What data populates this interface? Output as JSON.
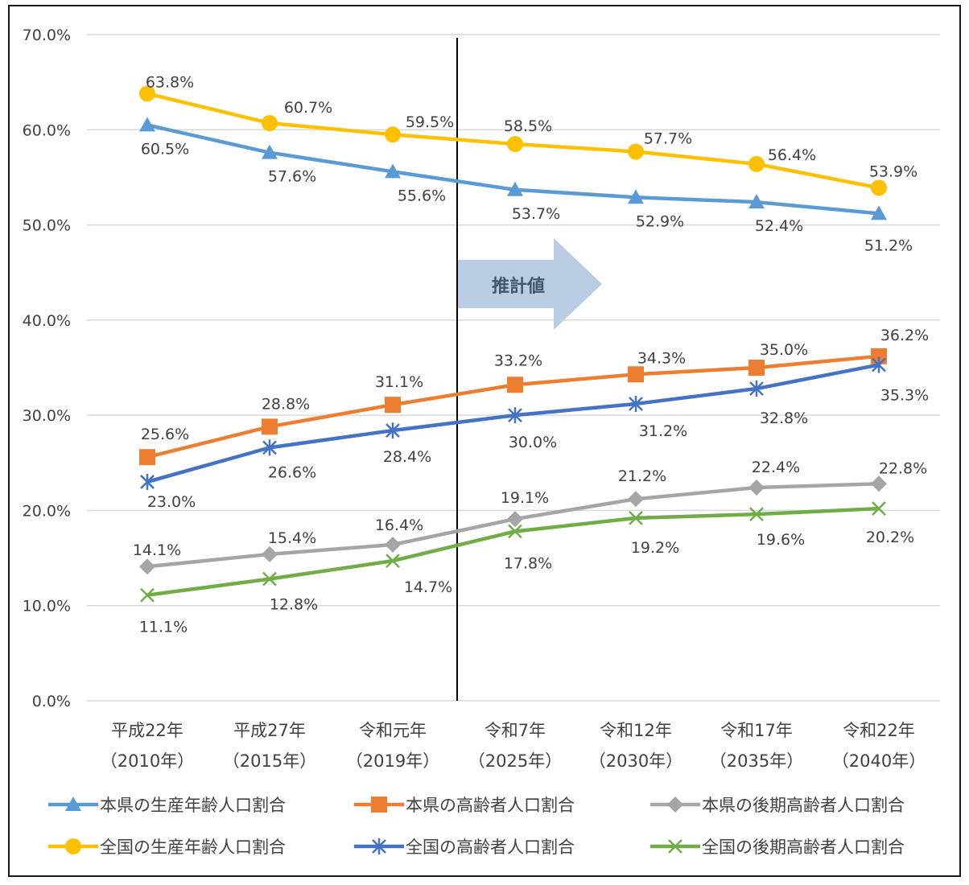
{
  "chart_data": {
    "type": "line",
    "title": "",
    "xlabel": "",
    "ylabel": "",
    "ylim": [
      0,
      70
    ],
    "y_ticks": [
      "0.0%",
      "10.0%",
      "20.0%",
      "30.0%",
      "40.0%",
      "50.0%",
      "60.0%",
      "70.0%"
    ],
    "categories": [
      [
        "平成22年",
        "（2010年）"
      ],
      [
        "平成27年",
        "（2015年）"
      ],
      [
        "令和元年",
        "（2019年）"
      ],
      [
        "令和7年",
        "（2025年）"
      ],
      [
        "令和12年",
        "（2030年）"
      ],
      [
        "令和17年",
        "（2035年）"
      ],
      [
        "令和22年",
        "（2040年）"
      ]
    ],
    "projection_label": "推計値",
    "grid": true,
    "legend_position": "bottom",
    "series": [
      {
        "name": "本県の生産年齢人口割合",
        "color": "#5b9bd5",
        "marker": "triangle",
        "values": [
          60.5,
          57.6,
          55.6,
          53.7,
          52.9,
          52.4,
          51.2
        ],
        "labels": [
          "60.5%",
          "57.6%",
          "55.6%",
          "53.7%",
          "52.9%",
          "52.4%",
          "51.2%"
        ]
      },
      {
        "name": "本県の高齢者人口割合",
        "color": "#ed7d31",
        "marker": "square",
        "values": [
          25.6,
          28.8,
          31.1,
          33.2,
          34.3,
          35.0,
          36.2
        ],
        "labels": [
          "25.6%",
          "28.8%",
          "31.1%",
          "33.2%",
          "34.3%",
          "35.0%",
          "36.2%"
        ]
      },
      {
        "name": "本県の後期高齢者人口割合",
        "color": "#a5a5a5",
        "marker": "diamond",
        "values": [
          14.1,
          15.4,
          16.4,
          19.1,
          21.2,
          22.4,
          22.8
        ],
        "labels": [
          "14.1%",
          "15.4%",
          "16.4%",
          "19.1%",
          "21.2%",
          "22.4%",
          "22.8%"
        ]
      },
      {
        "name": "全国の生産年齢人口割合",
        "color": "#ffc000",
        "marker": "circle",
        "values": [
          63.8,
          60.7,
          59.5,
          58.5,
          57.7,
          56.4,
          53.9
        ],
        "labels": [
          "63.8%",
          "60.7%",
          "59.5%",
          "58.5%",
          "57.7%",
          "56.4%",
          "53.9%"
        ]
      },
      {
        "name": "全国の高齢者人口割合",
        "color": "#4472c4",
        "marker": "star",
        "values": [
          23.0,
          26.6,
          28.4,
          30.0,
          31.2,
          32.8,
          35.3
        ],
        "labels": [
          "23.0%",
          "26.6%",
          "28.4%",
          "30.0%",
          "31.2%",
          "32.8%",
          "35.3%"
        ]
      },
      {
        "name": "全国の後期高齢者人口割合",
        "color": "#70ad47",
        "marker": "x",
        "values": [
          11.1,
          12.8,
          14.7,
          17.8,
          19.2,
          19.6,
          20.2
        ],
        "labels": [
          "11.1%",
          "12.8%",
          "14.7%",
          "17.8%",
          "19.2%",
          "19.6%",
          "20.2%"
        ]
      }
    ]
  }
}
